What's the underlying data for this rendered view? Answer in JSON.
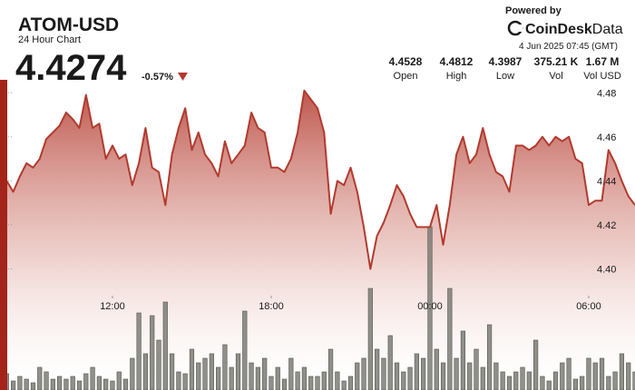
{
  "header": {
    "symbol": "ATOM-USD",
    "subtitle": "24 Hour Chart",
    "price": "4.4274",
    "change": "-0.57%",
    "powered_by": "Powered by",
    "brand": [
      "CoinDesk",
      "Data"
    ],
    "timestamp": "4 Jun 2025 07:45 (GMT)"
  },
  "stats": [
    {
      "value": "4.4528",
      "label": "Open"
    },
    {
      "value": "4.4812",
      "label": "High"
    },
    {
      "value": "4.3987",
      "label": "Low"
    },
    {
      "value": "375.21 K",
      "label": "Vol"
    },
    {
      "value": "1.67 M",
      "label": "Vol USD"
    }
  ],
  "chart_data": [
    {
      "type": "line",
      "color": "#b23a2e",
      "values": [
        4.425,
        4.44,
        4.435,
        4.442,
        4.448,
        4.446,
        4.45,
        4.459,
        4.462,
        4.465,
        4.471,
        4.468,
        4.464,
        4.479,
        4.464,
        4.466,
        4.45,
        4.456,
        4.45,
        4.452,
        4.438,
        4.448,
        4.464,
        4.446,
        4.444,
        4.429,
        4.452,
        4.464,
        4.473,
        4.454,
        4.462,
        4.452,
        4.448,
        4.442,
        4.458,
        4.448,
        4.452,
        4.456,
        4.471,
        4.464,
        4.462,
        4.446,
        4.446,
        4.444,
        4.45,
        4.462,
        4.481,
        4.477,
        4.473,
        4.462,
        4.425,
        4.44,
        4.438,
        4.446,
        4.435,
        4.419,
        4.4,
        4.415,
        4.421,
        4.429,
        4.438,
        4.433,
        4.425,
        4.419,
        4.419,
        4.419,
        4.429,
        4.411,
        4.429,
        4.452,
        4.46,
        4.448,
        4.452,
        4.464,
        4.452,
        4.444,
        4.442,
        4.435,
        4.456,
        4.456,
        4.454,
        4.456,
        4.46,
        4.456,
        4.46,
        4.458,
        4.46,
        4.45,
        4.448,
        4.429,
        4.431,
        4.431,
        4.454,
        4.448,
        4.44,
        4.433,
        4.429
      ],
      "ylim": [
        4.345,
        4.483
      ],
      "yticks": [
        4.48,
        4.46,
        4.44,
        4.42,
        {
          "value": 4.4,
          "label": "4.40"
        }
      ],
      "xticks": [
        {
          "value": 17,
          "label": "12:00"
        },
        {
          "value": 41,
          "label": "18:00"
        },
        {
          "value": 65,
          "label": "00:00"
        },
        {
          "value": 89,
          "label": "06:00"
        }
      ]
    },
    {
      "type": "bar",
      "color": "#7d7d76",
      "values": [
        15,
        18,
        10,
        15,
        12,
        8,
        25,
        20,
        12,
        15,
        12,
        15,
        10,
        18,
        25,
        15,
        12,
        10,
        20,
        12,
        35,
        85,
        40,
        82,
        55,
        97,
        40,
        20,
        18,
        45,
        30,
        35,
        40,
        25,
        50,
        25,
        40,
        87,
        30,
        25,
        35,
        15,
        25,
        12,
        35,
        20,
        25,
        15,
        15,
        20,
        45,
        20,
        10,
        15,
        30,
        35,
        112,
        45,
        35,
        60,
        30,
        20,
        25,
        40,
        35,
        180,
        45,
        30,
        112,
        35,
        65,
        30,
        45,
        25,
        72,
        30,
        20,
        15,
        20,
        25,
        20,
        55,
        15,
        10,
        20,
        30,
        35,
        12,
        15,
        35,
        30,
        35,
        15,
        20,
        40,
        30,
        20
      ]
    }
  ]
}
